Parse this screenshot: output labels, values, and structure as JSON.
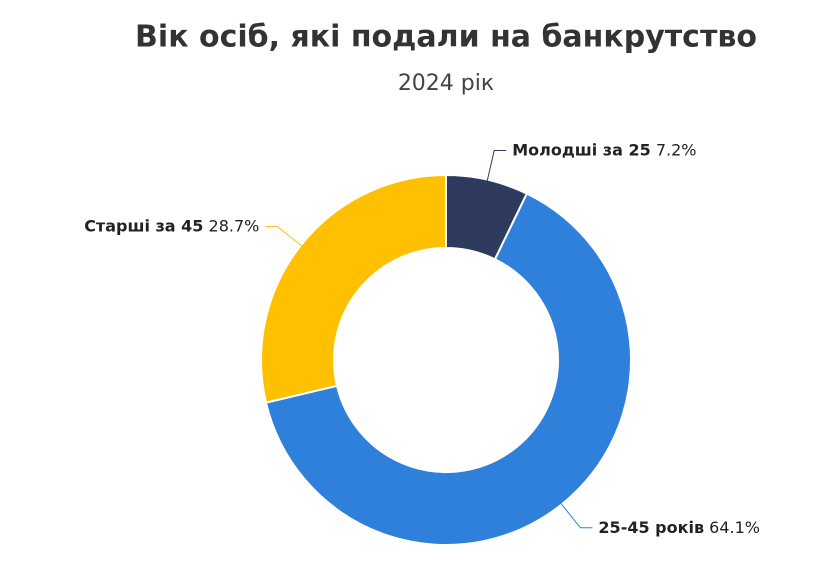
{
  "chart_data": {
    "type": "donut",
    "title": "Вік осіб, які подали на банкрутство",
    "subtitle": "2024 рік",
    "categories": [
      "Молодші за 25",
      "25-45 років",
      "Старші за 45"
    ],
    "values": [
      7.2,
      64.1,
      28.7
    ],
    "value_labels": [
      "7.2%",
      "64.1%",
      "28.7%"
    ],
    "colors": [
      "#2e3b5e",
      "#2e80db",
      "#ffc000"
    ]
  }
}
